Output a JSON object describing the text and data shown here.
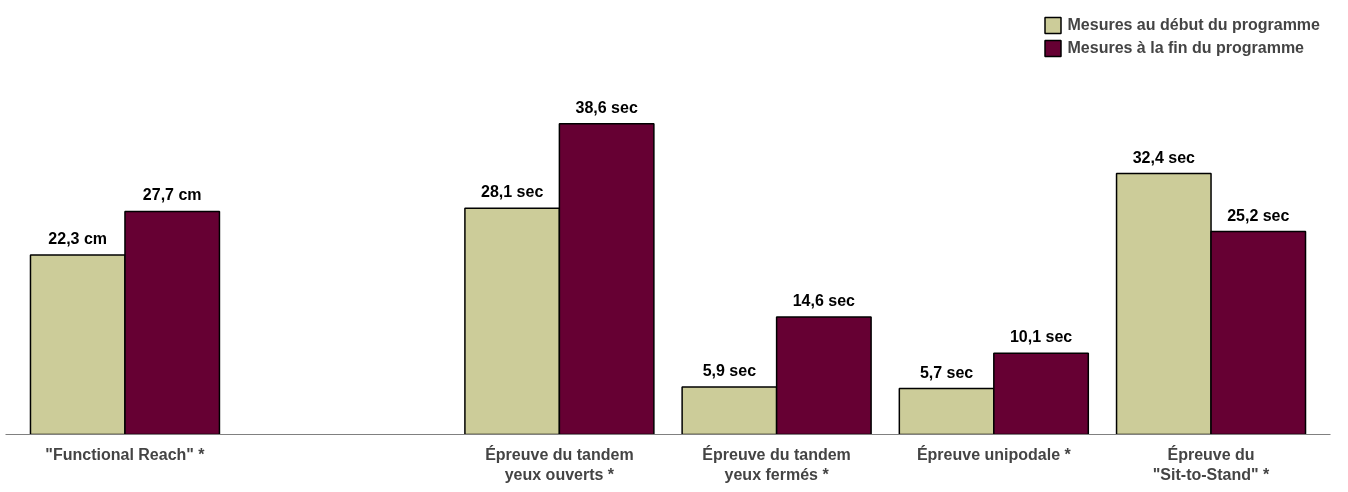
{
  "chart_data": {
    "type": "bar",
    "categories": [
      "\"Functional Reach\" *",
      null,
      "Épreuve du tandem\nyeux ouverts *",
      "Épreuve du tandem\nyeux fermés *",
      "Épreuve unipodale *",
      "Épreuve du\n\"Sit-to-Stand\" *"
    ],
    "series": [
      {
        "name": "Mesures au début du programme",
        "color": "#cccc99",
        "values": [
          22.3,
          null,
          28.1,
          5.9,
          5.7,
          32.4
        ],
        "value_labels": [
          "22,3 cm",
          null,
          "28,1 sec",
          "5,9 sec",
          "5,7 sec",
          "32,4 sec"
        ]
      },
      {
        "name": "Mesures à la fin du programme",
        "color": "#660033",
        "values": [
          27.7,
          null,
          38.6,
          14.6,
          10.1,
          25.2
        ],
        "value_labels": [
          "27,7 cm",
          null,
          "38,6 sec",
          "14,6 sec",
          "10,1 sec",
          "25,2 sec"
        ]
      }
    ],
    "legend": "top right",
    "grid": false
  }
}
